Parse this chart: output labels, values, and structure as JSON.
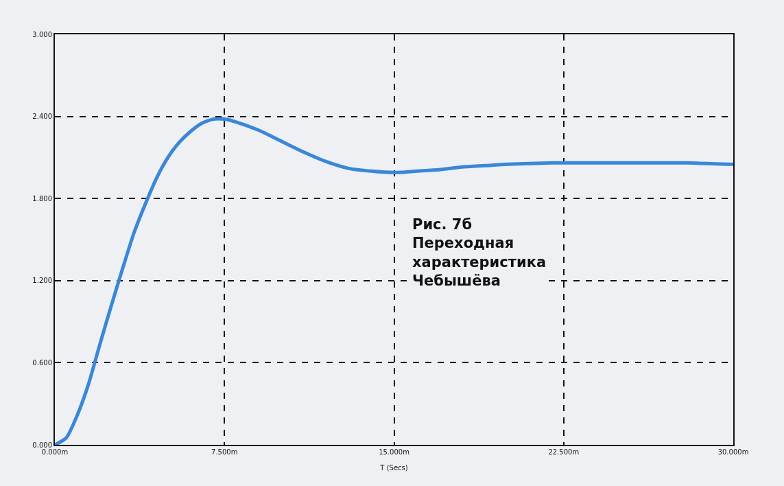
{
  "chart_data": {
    "type": "line",
    "xlabel": "T (Secs)",
    "annotations": [
      "Рис. 7б\nПереходная\nхарактеристика\nЧебышёва"
    ],
    "x": [
      0,
      0.5,
      1,
      1.5,
      2,
      2.5,
      3,
      3.5,
      4,
      4.5,
      5,
      5.5,
      6,
      6.5,
      7,
      7.5,
      8,
      9,
      10,
      11,
      12,
      13,
      14,
      15,
      16,
      17,
      18,
      19,
      20,
      22,
      24,
      26,
      28,
      30
    ],
    "series": [
      {
        "color": "#3a87d8",
        "values": [
          0,
          0.05,
          0.22,
          0.45,
          0.74,
          1.02,
          1.29,
          1.55,
          1.76,
          1.95,
          2.1,
          2.21,
          2.29,
          2.35,
          2.38,
          2.38,
          2.36,
          2.3,
          2.22,
          2.14,
          2.07,
          2.02,
          2.0,
          1.99,
          2.0,
          2.01,
          2.03,
          2.04,
          2.05,
          2.06,
          2.06,
          2.06,
          2.06,
          2.05
        ]
      }
    ],
    "xlim": [
      0,
      30
    ],
    "xticks": [
      {
        "value": 0,
        "label": "0.000m"
      },
      {
        "value": 7.5,
        "label": "7.500m"
      },
      {
        "value": 15,
        "label": "15.000m"
      },
      {
        "value": 22.5,
        "label": "22.500m"
      },
      {
        "value": 30,
        "label": "30.000m"
      }
    ],
    "ylim": [
      0,
      3
    ],
    "yticks": [
      {
        "value": 0,
        "label": "0.000"
      },
      {
        "value": 0.6,
        "label": "0.600"
      },
      {
        "value": 1.2,
        "label": "1.200"
      },
      {
        "value": 1.8,
        "label": "1.800"
      },
      {
        "value": 2.4,
        "label": "2.400"
      },
      {
        "value": 3,
        "label": "3.000"
      }
    ],
    "grid": true,
    "line_style": "solid"
  }
}
